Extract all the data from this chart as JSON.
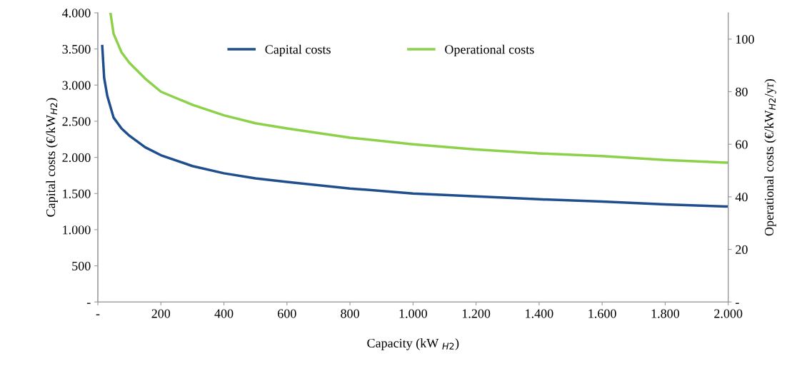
{
  "chart_data": {
    "type": "line",
    "xlabel": "Capacity (kW $_{H2}$)",
    "ylabel": "Capital costs (€/kW$_{H2}$)",
    "y2label": "Operational costs (€/kW$_{H2}$/yr)",
    "series": [
      {
        "name": "Capital costs",
        "color": "#1f4e8c",
        "x": [
          14,
          20,
          30,
          50,
          75,
          100,
          150,
          200,
          300,
          400,
          500,
          600,
          800,
          1000,
          1200,
          1400,
          1600,
          1800,
          2000
        ],
        "values": [
          3540,
          3100,
          2850,
          2550,
          2400,
          2300,
          2140,
          2030,
          1880,
          1780,
          1710,
          1660,
          1570,
          1500,
          1460,
          1420,
          1390,
          1350,
          1320
        ]
      },
      {
        "name": "Operational costs",
        "color": "#8dd14a",
        "axis": "y2",
        "x": [
          40,
          50,
          75,
          100,
          150,
          200,
          300,
          400,
          500,
          600,
          800,
          1000,
          1200,
          1400,
          1600,
          1800,
          2000
        ],
        "values": [
          110,
          102,
          95,
          91,
          85,
          80,
          75,
          71,
          68,
          66,
          62.5,
          60,
          58,
          56.5,
          55.5,
          54,
          53
        ]
      }
    ],
    "xlim": [
      0,
      2000
    ],
    "xticks": [
      {
        "value": 0,
        "label": "-"
      },
      200,
      400,
      600,
      800,
      {
        "value": 1000,
        "label": "1.000"
      },
      {
        "value": 1200,
        "label": "1.200"
      },
      {
        "value": 1400,
        "label": "1.400"
      },
      {
        "value": 1600,
        "label": "1.600"
      },
      {
        "value": 1800,
        "label": "1.800"
      },
      {
        "value": 2000,
        "label": "2.000"
      }
    ],
    "ylim": [
      0,
      4000
    ],
    "yticks": [
      {
        "value": 0,
        "label": "-"
      },
      500,
      {
        "value": 1000,
        "label": "1.000"
      },
      {
        "value": 1500,
        "label": "1.500"
      },
      {
        "value": 2000,
        "label": "2.000"
      },
      {
        "value": 2500,
        "label": "2.500"
      },
      {
        "value": 3000,
        "label": "3.000"
      },
      {
        "value": 3500,
        "label": "3.500"
      },
      {
        "value": 4000,
        "label": "4.000"
      }
    ],
    "y2lim": [
      0,
      110
    ],
    "y2ticks": [
      {
        "value": 0,
        "label": "-"
      },
      20,
      40,
      60,
      80,
      100
    ],
    "grid": false,
    "legend": "top",
    "marker": "none",
    "line_style": "solid"
  }
}
